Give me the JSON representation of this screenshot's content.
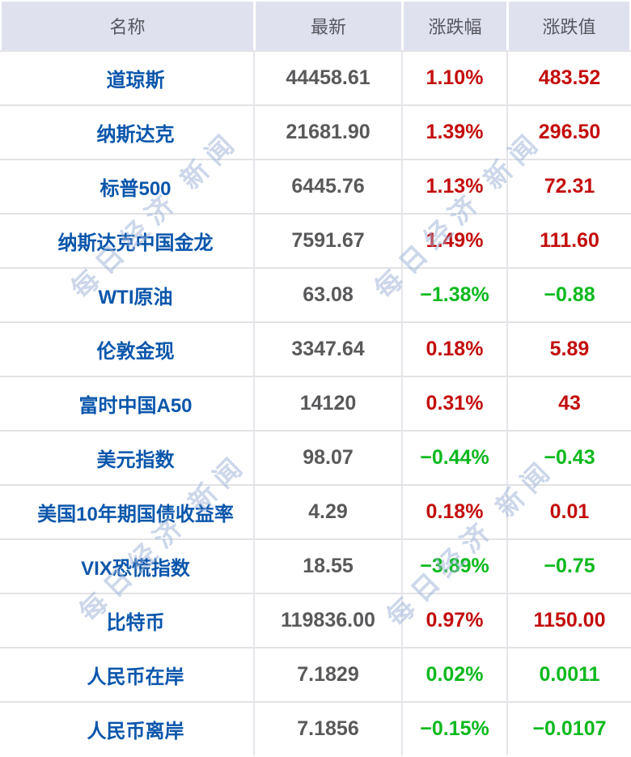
{
  "table": {
    "columns": [
      "名称",
      "最新",
      "涨跌幅",
      "涨跌值"
    ],
    "rows": [
      {
        "name": "道琼斯",
        "last": "44458.61",
        "pct": "1.10%",
        "chg": "483.52",
        "color": "red"
      },
      {
        "name": "纳斯达克",
        "last": "21681.90",
        "pct": "1.39%",
        "chg": "296.50",
        "color": "red"
      },
      {
        "name": "标普500",
        "last": "6445.76",
        "pct": "1.13%",
        "chg": "72.31",
        "color": "red"
      },
      {
        "name": "纳斯达克中国金龙",
        "last": "7591.67",
        "pct": "1.49%",
        "chg": "111.60",
        "color": "red"
      },
      {
        "name": "WTI原油",
        "last": "63.08",
        "pct": "−1.38%",
        "chg": "−0.88",
        "color": "green"
      },
      {
        "name": "伦敦金现",
        "last": "3347.64",
        "pct": "0.18%",
        "chg": "5.89",
        "color": "red"
      },
      {
        "name": "富时中国A50",
        "last": "14120",
        "pct": "0.31%",
        "chg": "43",
        "color": "red"
      },
      {
        "name": "美元指数",
        "last": "98.07",
        "pct": "−0.44%",
        "chg": "−0.43",
        "color": "green"
      },
      {
        "name": "美国10年期国债收益率",
        "last": "4.29",
        "pct": "0.18%",
        "chg": "0.01",
        "color": "red"
      },
      {
        "name": "VIX恐慌指数",
        "last": "18.55",
        "pct": "−3.89%",
        "chg": "−0.75",
        "color": "green"
      },
      {
        "name": "比特币",
        "last": "119836.00",
        "pct": "0.97%",
        "chg": "1150.00",
        "color": "red"
      },
      {
        "name": "人民币在岸",
        "last": "7.1829",
        "pct": "0.02%",
        "chg": "0.0011",
        "color": "green"
      },
      {
        "name": "人民币离岸",
        "last": "7.1856",
        "pct": "−0.15%",
        "chg": "−0.0107",
        "color": "green"
      }
    ]
  },
  "watermark": {
    "text": "每日经济 新闻"
  },
  "colors": {
    "rise_red": "#c30d0d",
    "fall_green": "#0cb91e",
    "name_blue": "#0a56ab",
    "value_gray": "#59595b",
    "header_bg": "#dfe2ee",
    "header_fg": "#565660",
    "watermark_blue": "rgba(154,175,214,0.5)"
  }
}
